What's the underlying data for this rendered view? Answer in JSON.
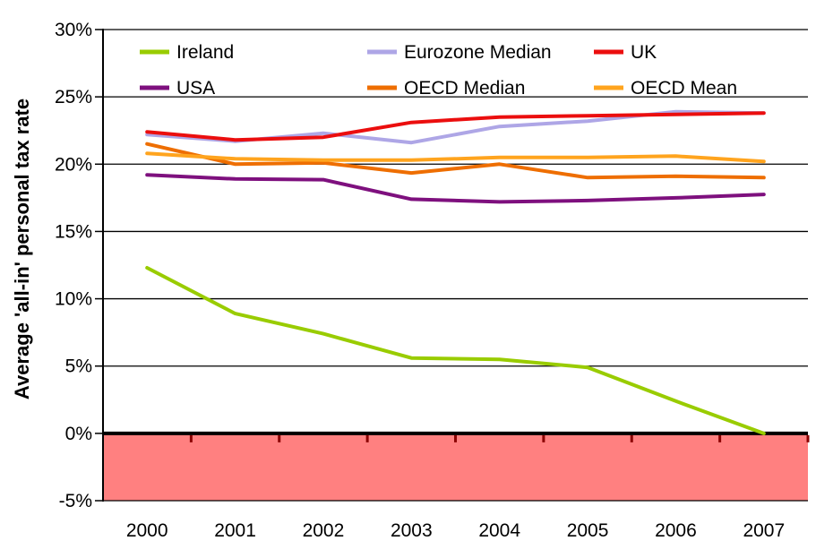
{
  "chart_data": {
    "type": "line",
    "title": "",
    "ylabel": "Average 'all-in' personal tax rate",
    "xlabel": "",
    "x_categories": [
      "2000",
      "2001",
      "2002",
      "2003",
      "2004",
      "2005",
      "2006",
      "2007"
    ],
    "ylim": [
      -5,
      30
    ],
    "ytick_values": [
      30,
      25,
      20,
      15,
      10,
      5,
      0,
      -5
    ],
    "ytick_labels": [
      "30%",
      "25%",
      "20%",
      "15%",
      "10%",
      "5%",
      "0%",
      "-5%"
    ],
    "grid": "horizontal",
    "legend_position": "top-inside",
    "legend_layout": {
      "rows": 2,
      "cols": 3
    },
    "series": [
      {
        "name": "Ireland",
        "color": "#99CC00",
        "values": [
          12.3,
          8.9,
          7.4,
          5.6,
          5.5,
          4.9,
          2.4,
          0.0
        ]
      },
      {
        "name": "Eurozone Median",
        "color": "#AEA6E6",
        "values": [
          22.2,
          21.7,
          22.3,
          21.6,
          22.8,
          23.2,
          23.9,
          23.8
        ]
      },
      {
        "name": "UK",
        "color": "#EB0E0E",
        "values": [
          22.4,
          21.8,
          22.0,
          23.1,
          23.5,
          23.6,
          23.7,
          23.8
        ]
      },
      {
        "name": "USA",
        "color": "#7E107E",
        "values": [
          19.2,
          18.9,
          18.85,
          17.4,
          17.2,
          17.3,
          17.5,
          17.75
        ]
      },
      {
        "name": "OECD Median",
        "color": "#EE6E00",
        "values": [
          21.5,
          20.0,
          20.1,
          19.35,
          20.0,
          19.0,
          19.1,
          19.0
        ]
      },
      {
        "name": "OECD Mean",
        "color": "#FFA41E",
        "values": [
          20.8,
          20.4,
          20.3,
          20.3,
          20.5,
          20.5,
          20.6,
          20.2
        ]
      }
    ],
    "negative_region": {
      "from": 0,
      "to": -5,
      "fill": "#FF8080"
    },
    "colors": {
      "grid": "#000000",
      "axis": "#000000",
      "zero_line": "#000000",
      "x_tick": "#8B0000",
      "text": "#000000",
      "background": "#FFFFFF"
    }
  }
}
